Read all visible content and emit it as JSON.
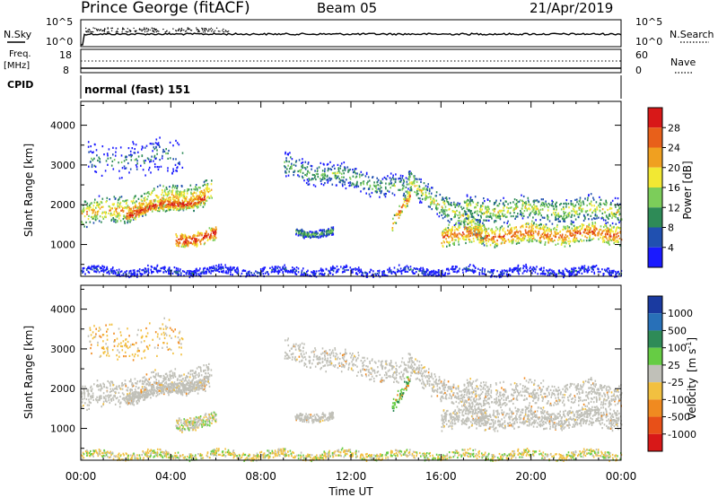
{
  "header": {
    "title": "Prince George (fitACF)",
    "beam": "Beam 05",
    "date": "21/Apr/2019"
  },
  "noise_panel": {
    "left_label": "N.Sky",
    "right_label": "N.Search",
    "ticks_left": [
      "10^5",
      "10^0"
    ],
    "ticks_right": [
      "10^5",
      "10^0"
    ]
  },
  "freq_panel": {
    "left_label_line1": "Freq.",
    "left_label_line2": "[MHz]",
    "right_label": "Nave",
    "ticks_left": [
      "18",
      "8"
    ],
    "ticks_right": [
      "60",
      "0"
    ]
  },
  "cpid": {
    "label": "CPID",
    "mode": "normal (fast) 151"
  },
  "time_axis": {
    "label": "Time UT",
    "ticks": [
      "00:00",
      "04:00",
      "08:00",
      "12:00",
      "16:00",
      "20:00",
      "00:00"
    ]
  },
  "chart_data": [
    {
      "type": "heatmap",
      "name": "power",
      "ylabel": "Slant Range [km]",
      "yticks": [
        "1000",
        "2000",
        "3000",
        "4000"
      ],
      "ylim": [
        200,
        4600
      ],
      "xlim_hours": [
        0,
        24
      ],
      "colorbar_label": "Power [dB]",
      "colorbar_ticks": [
        "4",
        "8",
        "12",
        "16",
        "20",
        "24",
        "28"
      ],
      "colors": [
        "#1a1aff",
        "#2050b0",
        "#2e8b57",
        "#7ccd5a",
        "#f2e833",
        "#f0a020",
        "#e8601a",
        "#d81818"
      ]
    },
    {
      "type": "heatmap",
      "name": "velocity",
      "ylabel": "Slant Range [km]",
      "yticks": [
        "1000",
        "2000",
        "3000",
        "4000"
      ],
      "ylim": [
        200,
        4600
      ],
      "xlim_hours": [
        0,
        24
      ],
      "colorbar_label": "Velocity",
      "colorbar_unit": "[m s",
      "colorbar_unit_exp": "-1",
      "colorbar_unit_end": "]",
      "colorbar_ticks": [
        "1000",
        "500",
        "100",
        "25",
        "-25",
        "-100",
        "-500",
        "-1000"
      ],
      "colors": [
        "#1a3aa0",
        "#2870b8",
        "#2e8b57",
        "#66cc44",
        "#c0c0b8",
        "#f2c040",
        "#f08a20",
        "#e85018",
        "#d81818"
      ]
    }
  ]
}
